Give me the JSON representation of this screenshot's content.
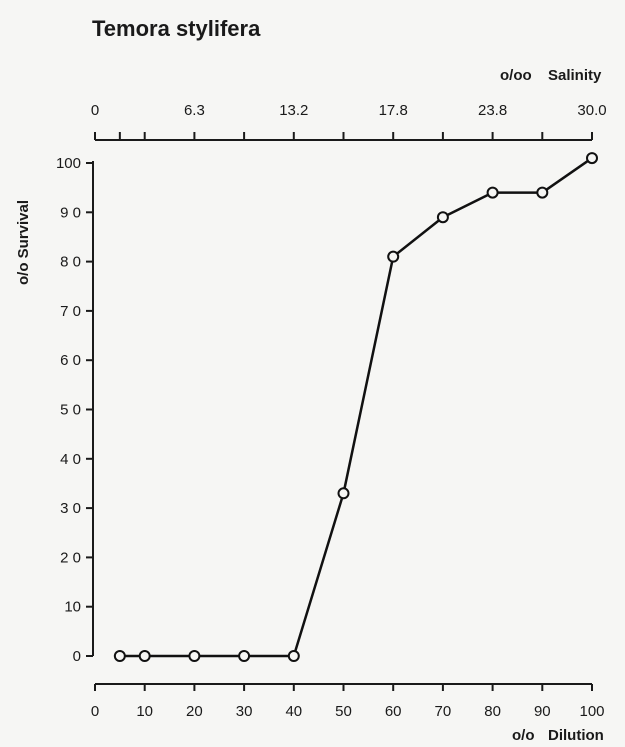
{
  "chart_data": {
    "type": "line",
    "title": "Temora stylifera",
    "xlabel_prefix": "o/o",
    "xlabel": "Dilution",
    "ylabel": "o/o Survival",
    "top_axis_label_prefix": "o/oo",
    "top_axis_label": "Salinity",
    "xlim": [
      0,
      100
    ],
    "ylim": [
      0,
      100
    ],
    "x_ticks": [
      0,
      10,
      20,
      30,
      40,
      50,
      60,
      70,
      80,
      90,
      100
    ],
    "x_tick_labels": [
      "0",
      "10",
      "20",
      "30",
      "40",
      "50",
      "60",
      "70",
      "80",
      "90",
      "100"
    ],
    "y_ticks": [
      0,
      10,
      20,
      30,
      40,
      50,
      60,
      70,
      80,
      90,
      100
    ],
    "y_tick_labels": [
      "0",
      "10",
      "2 0",
      "3 0",
      "4 0",
      "5 0",
      "6 0",
      "7 0",
      "8 0",
      "9 0",
      "100"
    ],
    "top_ticks": [
      0,
      5,
      10,
      20,
      30,
      40,
      50,
      60,
      70,
      80,
      90,
      100
    ],
    "top_labels": [
      {
        "at": 0,
        "text": "0"
      },
      {
        "at": 20,
        "text": "6.3"
      },
      {
        "at": 40,
        "text": "13.2"
      },
      {
        "at": 60,
        "text": "17.8"
      },
      {
        "at": 80,
        "text": "23.8"
      },
      {
        "at": 100,
        "text": "30.0"
      }
    ],
    "series": [
      {
        "x": [
          5,
          10,
          20,
          30,
          40,
          50,
          60,
          70,
          80,
          90,
          100
        ],
        "y": [
          0,
          0,
          0,
          0,
          0,
          33,
          81,
          89,
          94,
          94,
          101
        ],
        "marker": "open-circle",
        "color": "#111111"
      }
    ],
    "grid": false
  }
}
